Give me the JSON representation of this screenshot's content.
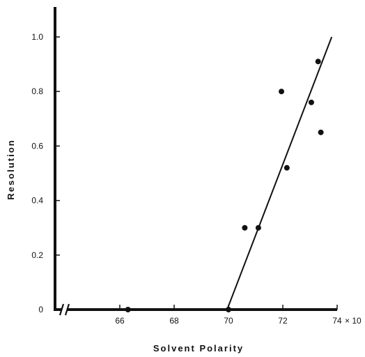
{
  "chart_data": {
    "type": "scatter",
    "xlabel": "Solvent Polarity",
    "ylabel": "Resolution",
    "x_unit_suffix": "× 10",
    "xlim": [
      64.2,
      74.2
    ],
    "ylim": [
      0,
      1.08
    ],
    "x_break": true,
    "grid": false,
    "x_ticks": [
      66,
      68,
      70,
      72,
      74
    ],
    "x_tick_labels": [
      "66",
      "68",
      "70",
      "72",
      "74"
    ],
    "y_ticks": [
      0,
      0.2,
      0.4,
      0.6,
      0.8,
      1.0
    ],
    "y_tick_labels": [
      "0",
      "0.2",
      "0.4",
      "0.6",
      "0.8",
      "1.0"
    ],
    "points": [
      {
        "x": 66.3,
        "y": 0.0
      },
      {
        "x": 70.0,
        "y": 0.0
      },
      {
        "x": 70.6,
        "y": 0.3
      },
      {
        "x": 71.1,
        "y": 0.3
      },
      {
        "x": 71.95,
        "y": 0.8
      },
      {
        "x": 72.15,
        "y": 0.52
      },
      {
        "x": 73.05,
        "y": 0.76
      },
      {
        "x": 73.3,
        "y": 0.91
      },
      {
        "x": 73.4,
        "y": 0.65
      }
    ],
    "fit_line": {
      "x": [
        69.95,
        73.8
      ],
      "y": [
        0.0,
        1.0
      ]
    },
    "colors": {
      "ink": "#111111"
    }
  }
}
